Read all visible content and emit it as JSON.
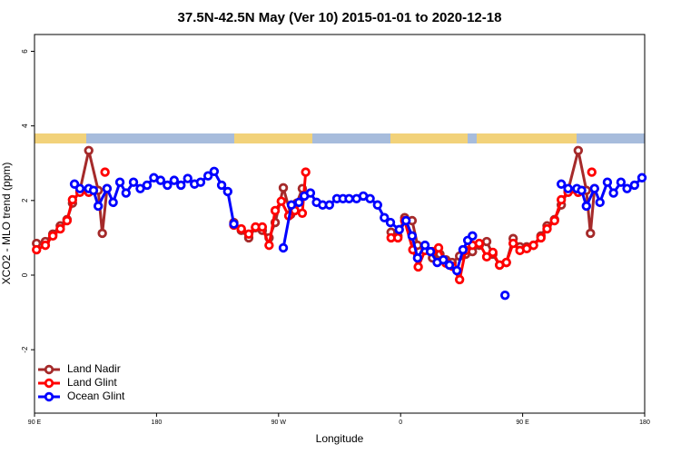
{
  "chart_data": {
    "type": "line",
    "title": "37.5N-42.5N May (Ver 10)   2015-01-01 to 2020-12-18",
    "xlabel": "Longitude",
    "ylabel": "XCO2 - MLO trend (ppm)",
    "xlim": [
      90,
      540
    ],
    "ylim": [
      -3.7,
      6.45
    ],
    "xticks": [
      {
        "value": 90,
        "label": "90 E"
      },
      {
        "value": 180,
        "label": "180"
      },
      {
        "value": 270,
        "label": "90 W"
      },
      {
        "value": 360,
        "label": "0"
      },
      {
        "value": 450,
        "label": "90 E"
      },
      {
        "value": 540,
        "label": "180"
      }
    ],
    "yticks": [
      -2,
      0,
      2,
      4,
      6
    ],
    "legend": "bottom-left",
    "series": [
      {
        "name": "Land Nadir",
        "color": "#a52a2a",
        "x": [
          91.5,
          98,
          103.5,
          109,
          114,
          118,
          123.5,
          130,
          137,
          140,
          143.5,
          null,
          237,
          242.5,
          248,
          253,
          258,
          263,
          267.5,
          273.5,
          279,
          283.5,
          287.5,
          null,
          353,
          358,
          363,
          368.5,
          372.5,
          378,
          383.5,
          389,
          393.5,
          398,
          403.5,
          408,
          413,
          418,
          423.5,
          428,
          433,
          438,
          443,
          448,
          453,
          458,
          463.5,
          468,
          473.5,
          478.5,
          483.5,
          491,
          497,
          500,
          503
        ],
        "values": [
          0.85,
          0.9,
          1.1,
          1.32,
          1.49,
          1.93,
          2.27,
          3.34,
          2.27,
          1.12,
          2.32,
          null,
          1.41,
          1.2,
          1.0,
          1.27,
          1.2,
          1.0,
          1.41,
          2.34,
          1.63,
          1.93,
          2.32,
          null,
          1.15,
          1.05,
          1.54,
          1.46,
          0.8,
          0.66,
          0.46,
          0.56,
          0.41,
          0.34,
          0.51,
          0.56,
          0.63,
          0.8,
          0.9,
          0.56,
          0.27,
          0.34,
          0.98,
          0.76,
          0.76,
          0.8,
          1.05,
          1.32,
          1.49,
          1.88,
          2.27,
          3.34,
          2.27,
          1.12,
          2.32
        ]
      },
      {
        "name": "Land Glint",
        "color": "#ff0000",
        "x": [
          91.5,
          98,
          103.5,
          109,
          114,
          118,
          123.5,
          130,
          null,
          142,
          null,
          237,
          242.5,
          248,
          253,
          258,
          263,
          267.5,
          272,
          277.5,
          282,
          287.5,
          290,
          null,
          353,
          358,
          363,
          369,
          373,
          378,
          383.5,
          388,
          393.5,
          398,
          403.5,
          408,
          413,
          418,
          423.5,
          428,
          433,
          438,
          443,
          448,
          453,
          458,
          463.5,
          468,
          473.5,
          478.5,
          483.5,
          491,
          null,
          501
        ],
        "values": [
          0.68,
          0.8,
          1.05,
          1.24,
          1.46,
          2.02,
          2.22,
          2.22,
          null,
          2.76,
          null,
          1.34,
          1.24,
          1.1,
          1.29,
          1.29,
          0.8,
          1.73,
          1.98,
          1.59,
          1.73,
          1.66,
          2.76,
          null,
          1.0,
          1.0,
          1.46,
          0.68,
          0.22,
          0.66,
          0.63,
          0.73,
          0.32,
          0.24,
          -0.12,
          0.66,
          0.8,
          0.85,
          0.49,
          0.61,
          0.27,
          0.34,
          0.85,
          0.66,
          0.71,
          0.8,
          1.0,
          1.24,
          1.46,
          2.02,
          2.22,
          2.22,
          null,
          2.76
        ]
      },
      {
        "name": "Ocean Glint",
        "color": "#0000ff",
        "x": [
          119.5,
          123.5,
          130,
          133.5,
          137,
          143.5,
          148,
          153,
          157.5,
          163,
          168,
          173,
          178,
          183,
          188,
          193,
          198,
          203,
          208,
          212.5,
          218,
          222.5,
          228,
          232.5,
          237,
          null,
          273.5,
          279.5,
          285,
          289,
          293.5,
          298,
          302.5,
          307.5,
          313,
          317.5,
          322,
          327.5,
          332.5,
          337.5,
          343,
          348,
          352.5,
          359,
          364,
          368.5,
          372.5,
          378,
          382,
          387,
          391.5,
          396,
          401.5,
          406,
          409.5,
          413,
          null,
          437,
          null,
          478.5,
          483.5,
          490,
          493.5,
          497,
          503,
          507,
          512.5,
          517,
          522.5,
          527,
          532.5,
          538
        ],
        "values": [
          2.44,
          2.32,
          2.32,
          2.27,
          1.85,
          2.32,
          1.95,
          2.49,
          2.2,
          2.49,
          2.32,
          2.41,
          2.61,
          2.54,
          2.41,
          2.54,
          2.41,
          2.59,
          2.44,
          2.49,
          2.66,
          2.78,
          2.41,
          2.24,
          1.37,
          null,
          0.73,
          1.88,
          1.95,
          2.12,
          2.2,
          1.95,
          1.88,
          1.88,
          2.05,
          2.05,
          2.05,
          2.05,
          2.12,
          2.05,
          1.88,
          1.54,
          1.41,
          1.22,
          1.46,
          1.05,
          0.46,
          0.8,
          0.63,
          0.34,
          0.41,
          0.27,
          0.12,
          0.68,
          0.93,
          1.05,
          null,
          -0.54,
          null,
          2.44,
          2.32,
          2.32,
          2.27,
          1.85,
          2.32,
          1.95,
          2.49,
          2.2,
          2.49,
          2.32,
          2.41,
          2.61
        ]
      }
    ]
  }
}
